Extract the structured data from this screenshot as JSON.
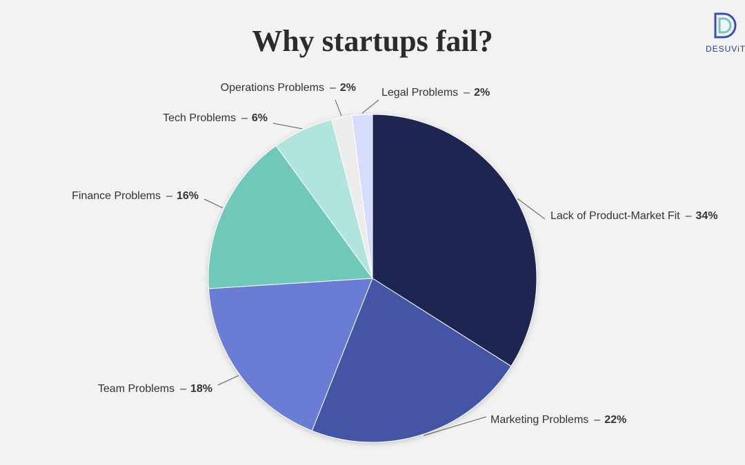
{
  "chart_data": {
    "type": "pie",
    "title": "Why startups fail?",
    "brand": "DESUViT",
    "categories": [
      "Lack of Product-Market Fit",
      "Marketing Problems",
      "Team Problems",
      "Finance Problems",
      "Tech Problems",
      "Operations Problems",
      "Legal Problems"
    ],
    "values": [
      34,
      22,
      18,
      16,
      6,
      2,
      2
    ],
    "value_labels": [
      "34%",
      "22%",
      "18%",
      "16%",
      "6%",
      "2%",
      "2%"
    ],
    "label_separator": "–",
    "colors": [
      "#1c2551",
      "#4455a6",
      "#6a7bd4",
      "#6fc8bb",
      "#b0e4dd",
      "#ececec",
      "#d6dcfb"
    ]
  }
}
